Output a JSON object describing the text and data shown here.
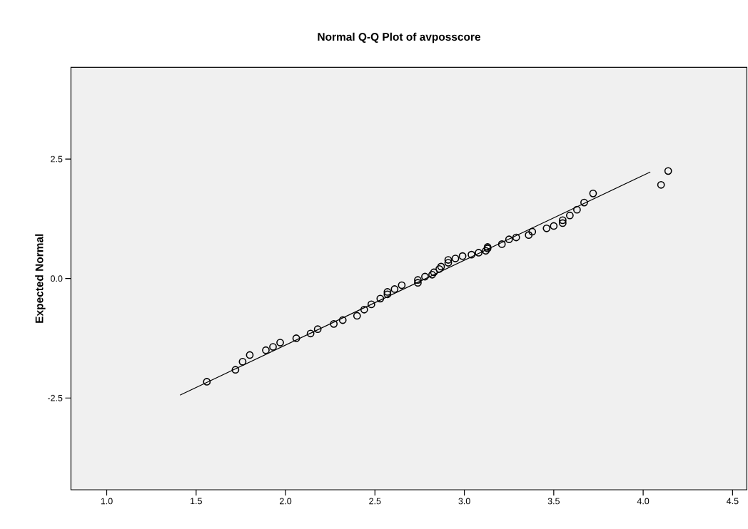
{
  "chart_data": {
    "type": "scatter",
    "title": "Normal Q-Q Plot of avposscore",
    "ylabel": "Expected Normal",
    "xlim": [
      0.8,
      4.58
    ],
    "ylim": [
      -4.42,
      4.42
    ],
    "xticks": [
      {
        "value": 1,
        "label": "1.0"
      },
      {
        "value": 1.5,
        "label": "1.5"
      },
      {
        "value": 2,
        "label": "2.0"
      },
      {
        "value": 2.5,
        "label": "2.5"
      },
      {
        "value": 3,
        "label": "3.0"
      },
      {
        "value": 3.5,
        "label": "3.5"
      },
      {
        "value": 4,
        "label": "4.0"
      },
      {
        "value": 4.5,
        "label": "4.5"
      }
    ],
    "yticks": [
      {
        "value": -2.5,
        "label": "-2.5"
      },
      {
        "value": 0,
        "label": "0.0"
      },
      {
        "value": 2.5,
        "label": "2.5"
      }
    ],
    "grid": false,
    "marker": "circle",
    "series": [
      {
        "color": "#000000",
        "x": [
          1.56,
          1.72,
          1.76,
          1.8,
          1.89,
          1.93,
          1.97,
          2.06,
          2.14,
          2.18,
          2.27,
          2.32,
          2.4,
          2.44,
          2.48,
          2.53,
          2.57,
          2.57,
          2.61,
          2.65,
          2.74,
          2.74,
          2.78,
          2.82,
          2.83,
          2.86,
          2.87,
          2.91,
          2.91,
          2.95,
          2.99,
          3.04,
          3.08,
          3.12,
          3.13,
          3.13,
          3.21,
          3.25,
          3.29,
          3.36,
          3.38,
          3.46,
          3.5,
          3.55,
          3.55,
          3.59,
          3.63,
          3.67,
          3.72,
          4.1,
          4.14
        ],
        "values": [
          -2.16,
          -1.91,
          -1.74,
          -1.6,
          -1.5,
          -1.43,
          -1.34,
          -1.25,
          -1.15,
          -1.06,
          -0.95,
          -0.87,
          -0.78,
          -0.65,
          -0.54,
          -0.42,
          -0.33,
          -0.28,
          -0.22,
          -0.14,
          -0.09,
          -0.03,
          0.04,
          0.08,
          0.13,
          0.2,
          0.25,
          0.33,
          0.39,
          0.42,
          0.47,
          0.5,
          0.54,
          0.58,
          0.63,
          0.66,
          0.72,
          0.82,
          0.86,
          0.91,
          0.98,
          1.05,
          1.1,
          1.16,
          1.22,
          1.32,
          1.44,
          1.59,
          1.78,
          1.96,
          2.25
        ]
      },
      {
        "type": "line",
        "color": "#000000",
        "marker": "none",
        "line_style": "solid",
        "x": [
          1.41,
          4.04
        ],
        "values": [
          -2.44,
          2.23
        ]
      }
    ]
  }
}
